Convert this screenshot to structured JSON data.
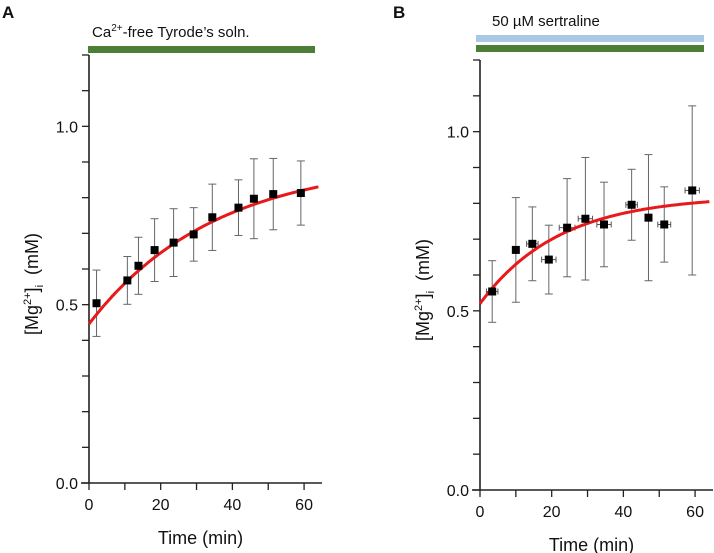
{
  "chart_data": [
    {
      "type": "scatter",
      "panel_label": "A",
      "condition_bars": [
        {
          "label": "Ca2+-free Tyrode's soln.",
          "color": "#4a7f35"
        }
      ],
      "condition_text": {
        "main": "Ca",
        "sup": "2+",
        "rest": "-free Tyrode’s soln."
      },
      "xlabel": "Time  (min)",
      "ylabel": {
        "main": "[Mg",
        "sup": "2+",
        "close": "]",
        "sub": "i",
        "unit": "  (mM)"
      },
      "xlim": [
        0,
        65
      ],
      "ylim": [
        0,
        1.2
      ],
      "xticks": [
        0,
        20,
        40,
        60
      ],
      "xtick_labels": [
        "0",
        "20",
        "40",
        "60"
      ],
      "yticks": [
        0,
        0.5,
        1.0
      ],
      "ytick_labels": [
        "0.0",
        "0.5",
        "1.0"
      ],
      "points": {
        "x": [
          2.1,
          10.7,
          13.8,
          18.3,
          23.6,
          29.2,
          34.4,
          41.7,
          46.0,
          51.4,
          59.1
        ],
        "y": [
          0.504,
          0.568,
          0.609,
          0.653,
          0.674,
          0.697,
          0.745,
          0.772,
          0.797,
          0.81,
          0.813
        ],
        "yerr": [
          0.093,
          0.067,
          0.08,
          0.088,
          0.095,
          0.075,
          0.093,
          0.078,
          0.112,
          0.1,
          0.09
        ],
        "xerr": null
      },
      "fit": {
        "type": "exponential",
        "plateau": 0.904,
        "amplitude": 0.458,
        "tau_min": 35,
        "color": "#e8191b"
      }
    },
    {
      "type": "scatter",
      "panel_label": "B",
      "condition_bars": [
        {
          "label": "50 µM sertraline",
          "color": "#a8c8e4"
        },
        {
          "label": "",
          "color": "#4a7f35"
        }
      ],
      "condition_text": {
        "main": "50 µM sertraline",
        "sup": "",
        "rest": ""
      },
      "xlabel": "Time  (min)",
      "ylabel": {
        "main": "[Mg",
        "sup": "2+",
        "close": "]",
        "sub": "i",
        "unit": "  (mM)"
      },
      "xlim": [
        0,
        65
      ],
      "ylim": [
        0,
        1.2
      ],
      "xticks": [
        0,
        20,
        40,
        60
      ],
      "xtick_labels": [
        "0",
        "20",
        "40",
        "60"
      ],
      "yticks": [
        0,
        0.5,
        1.0
      ],
      "ytick_labels": [
        "0.0",
        "0.5",
        "1.0"
      ],
      "points": {
        "x": [
          3.4,
          10.0,
          14.6,
          19.2,
          24.3,
          29.4,
          34.6,
          42.3,
          47.0,
          51.4,
          59.2
        ],
        "y": [
          0.554,
          0.67,
          0.687,
          0.643,
          0.732,
          0.757,
          0.741,
          0.796,
          0.76,
          0.741,
          0.836
        ],
        "yerr": [
          0.086,
          0.146,
          0.103,
          0.096,
          0.137,
          0.171,
          0.118,
          0.099,
          0.176,
          0.105,
          0.236
        ],
        "xerr": [
          1.6,
          0,
          1.6,
          2.0,
          2.2,
          2.0,
          2.0,
          1.6,
          0,
          1.8,
          2.0
        ]
      },
      "fit": {
        "type": "exponential",
        "plateau": 0.821,
        "amplitude": 0.301,
        "tau_min": 22,
        "color": "#e8191b"
      }
    }
  ]
}
